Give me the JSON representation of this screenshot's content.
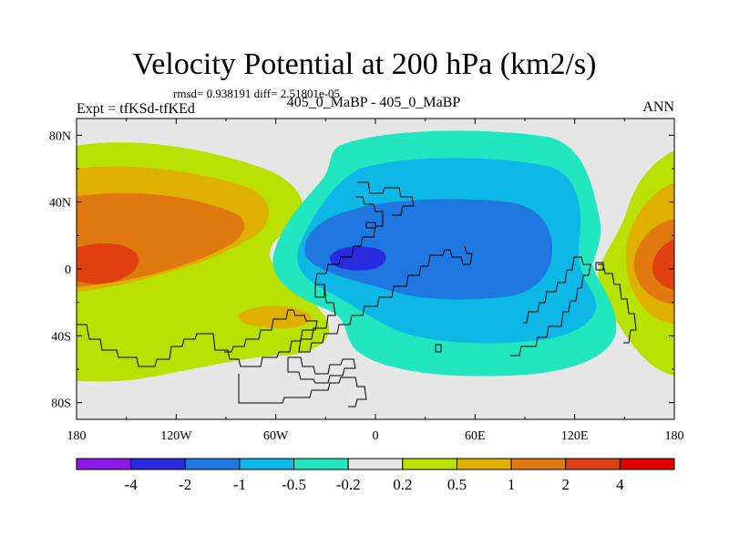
{
  "chart_data": {
    "type": "heatmap",
    "title": "Velocity Potential at 200 hPa (km2/s)",
    "stats_text": "rmsd= 0.938191 diff= 2.51801e-05",
    "left_string": "Expt = tfKSd-tfKEd",
    "center_string": "405_0_MaBP - 405_0_MaBP",
    "right_string": "ANN",
    "x_ticks": [
      "180",
      "120W",
      "60W",
      "0",
      "60E",
      "120E",
      "180"
    ],
    "y_ticks": [
      "80N",
      "40N",
      "0",
      "40S",
      "80S"
    ],
    "xlim": [
      -180,
      180
    ],
    "ylim": [
      -90,
      90
    ],
    "colorbar": {
      "labels": [
        "-4",
        "-2",
        "-1",
        "-0.5",
        "-0.2",
        "0.2",
        "0.5",
        "1",
        "2",
        "4"
      ],
      "colors": [
        "#8c17e6",
        "#2a2ae0",
        "#1e78e0",
        "#0db8e6",
        "#22e6c0",
        "#e6e6e6",
        "#b8e000",
        "#e0b000",
        "#e07a10",
        "#e04010",
        "#e00000"
      ]
    },
    "field_colors": {
      "background": "#e6e6e6",
      "pos_0_2": "#b8e000",
      "pos_0_5": "#e0b000",
      "pos_1": "#e07a10",
      "pos_2": "#e04010",
      "neg_0_2": "#22e6c0",
      "neg_0_5": "#0db8e6",
      "neg_1": "#1e78e0",
      "neg_2": "#2a2ae0"
    }
  }
}
